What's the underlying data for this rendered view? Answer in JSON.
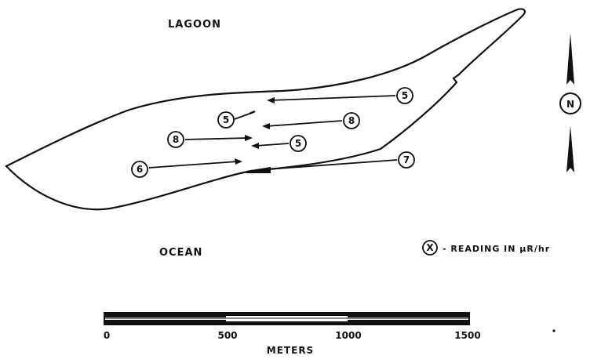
{
  "labels": {
    "lagoon": "LAGOON",
    "ocean": "OCEAN",
    "north": "N"
  },
  "legend": {
    "symbol": "X",
    "text": "- READING IN μR/hr"
  },
  "scale_bar": {
    "ticks": [
      "0",
      "500",
      "1000",
      "1500"
    ],
    "unit": "METERS"
  },
  "readings": [
    "5",
    "5",
    "8",
    "8",
    "5",
    "6",
    "7"
  ]
}
